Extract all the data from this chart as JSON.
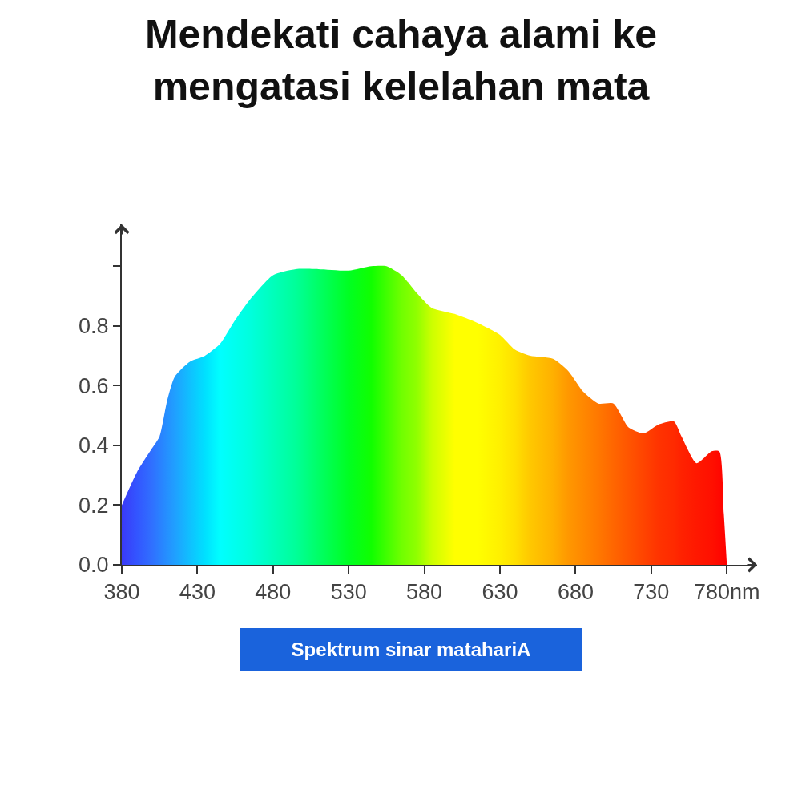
{
  "chart_data": {
    "type": "area",
    "title": "Mendekati cahaya alami ke\nmengatasi kelelahan mata",
    "x": [
      380,
      390,
      400,
      405,
      410,
      415,
      425,
      435,
      445,
      455,
      465,
      480,
      495,
      510,
      530,
      545,
      555,
      565,
      575,
      585,
      600,
      615,
      630,
      640,
      650,
      665,
      675,
      685,
      695,
      705,
      715,
      725,
      735,
      745,
      750,
      760,
      770,
      775,
      778,
      780
    ],
    "series": [
      {
        "values": [
          0.2,
          0.31,
          0.39,
          0.43,
          0.55,
          0.63,
          0.68,
          0.7,
          0.74,
          0.82,
          0.89,
          0.97,
          0.99,
          0.99,
          0.985,
          1.0,
          1.0,
          0.97,
          0.91,
          0.86,
          0.84,
          0.81,
          0.77,
          0.72,
          0.7,
          0.69,
          0.65,
          0.58,
          0.54,
          0.54,
          0.46,
          0.44,
          0.47,
          0.48,
          0.43,
          0.34,
          0.38,
          0.38,
          0.17,
          0
        ],
        "colors": [
          "#3a3af8",
          "#3355ff",
          "#3070ff",
          "#2a80ff",
          "#2590ff",
          "#209fff",
          "#10c0ff",
          "#00e0ff",
          "#00ffff",
          "#00ffee",
          "#00ffdd",
          "#00ffbb",
          "#00ff99",
          "#00ff66",
          "#00ff22",
          "#10ff00",
          "#40ff00",
          "#70ff00",
          "#90ff00",
          "#ccff00",
          "#ffff00",
          "#ffff00",
          "#fff000",
          "#ffe000",
          "#ffc800",
          "#ffb000",
          "#ff9800",
          "#ff8800",
          "#ff7800",
          "#ff6600",
          "#ff5500",
          "#ff4400",
          "#ff3300",
          "#ff2a00",
          "#ff2200",
          "#ff1800",
          "#ff1000",
          "#ff0800",
          "#ff0400",
          "#ff0000"
        ]
      }
    ],
    "xlim": [
      380,
      800
    ],
    "ylim": [
      0,
      1.14
    ],
    "xticks": [
      380,
      430,
      480,
      530,
      580,
      630,
      680,
      730,
      {
        "value": 780,
        "label": "780nm"
      }
    ],
    "yticks": [
      {
        "value": 0,
        "label": "0.0"
      },
      0.2,
      0.4,
      0.6,
      0.8,
      {
        "value": 1.0,
        "label": null
      }
    ],
    "annotations": [
      "Spektrum sinar matahariA"
    ]
  }
}
